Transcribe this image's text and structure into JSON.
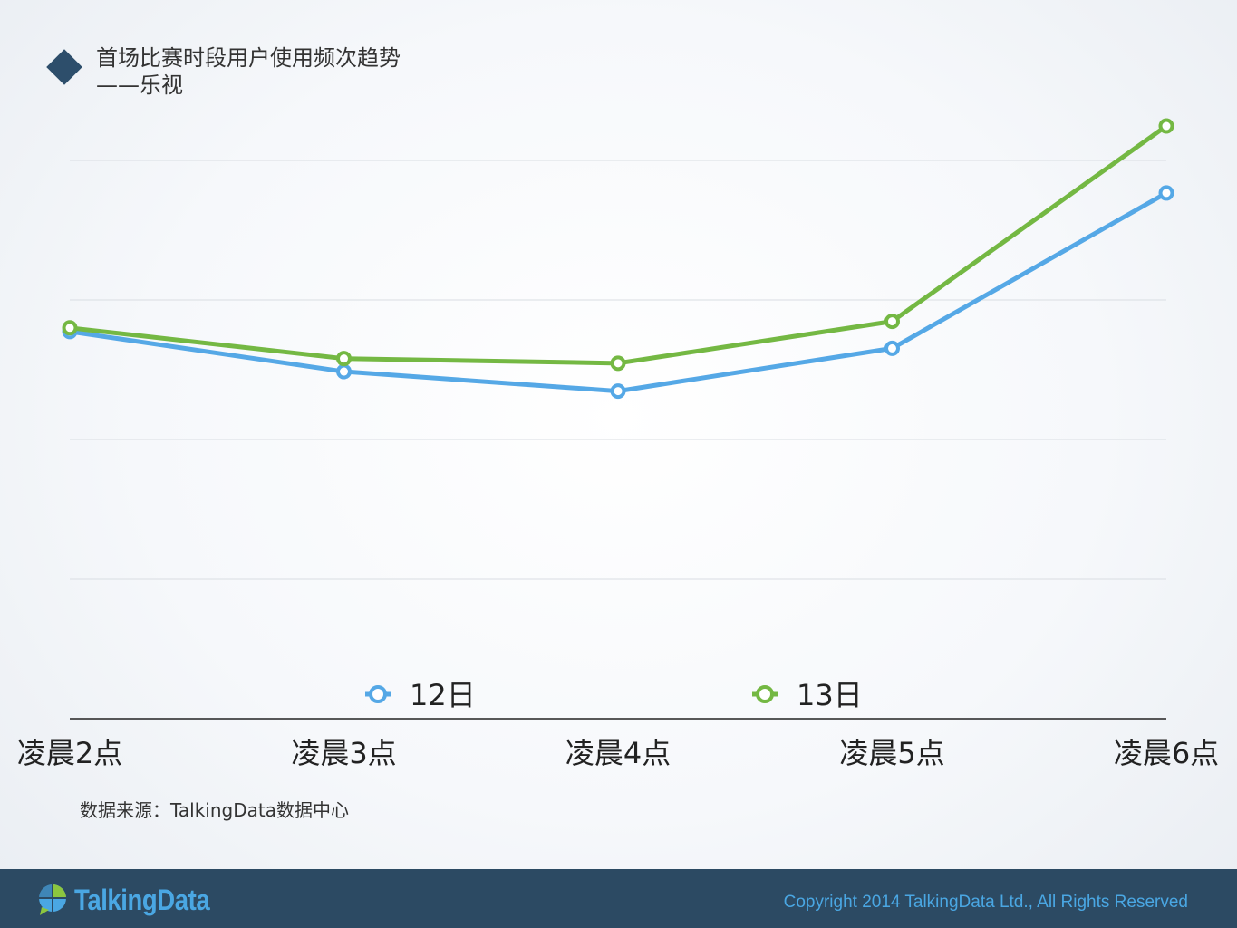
{
  "title": {
    "line1": "首场比赛时段用户使用频次趋势",
    "line2": "——乐视"
  },
  "chart_data": {
    "type": "line",
    "categories": [
      "凌晨2点",
      "凌晨3点",
      "凌晨4点",
      "凌晨5点",
      "凌晨6点"
    ],
    "series": [
      {
        "name": "12日",
        "color": "#55a8e6",
        "values": [
          41.6,
          37.3,
          35.2,
          39.8,
          56.5
        ]
      },
      {
        "name": "13日",
        "color": "#74b843",
        "values": [
          42.0,
          38.7,
          38.2,
          42.7,
          63.7
        ]
      }
    ],
    "ylim": [
      0,
      75
    ],
    "yticks": [
      15,
      30,
      45,
      60
    ],
    "y_tick_labels_shown": false,
    "grid": true,
    "legend": "bottom-center",
    "xlabel": "",
    "ylabel": ""
  },
  "source": "数据来源：TalkingData数据中心",
  "footer": {
    "logo_text": "TalkingData",
    "logo_icon": "talkingdata-logo-icon",
    "copyright": "Copyright 2014 TalkingData Ltd., All Rights Reserved"
  }
}
